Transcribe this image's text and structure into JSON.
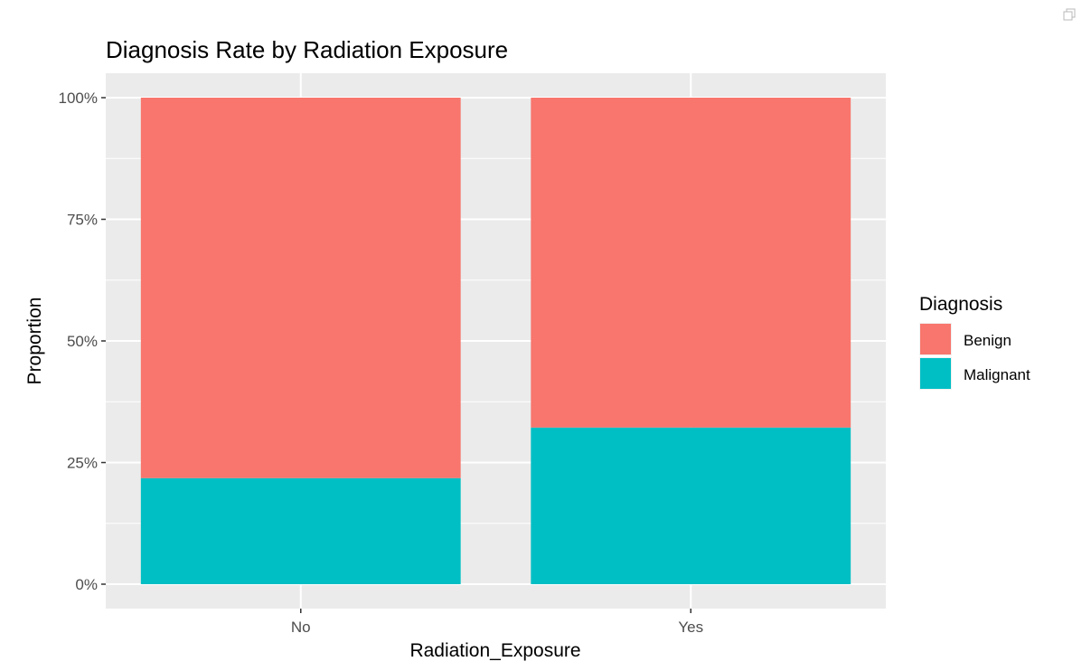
{
  "chart_data": {
    "type": "bar",
    "stacked": "fill",
    "title": "Diagnosis Rate by Radiation Exposure",
    "xlabel": "Radiation_Exposure",
    "ylabel": "Proportion",
    "categories": [
      "No",
      "Yes"
    ],
    "series": [
      {
        "name": "Malignant",
        "values": [
          0.218,
          0.322
        ],
        "color": "#00BFC4"
      },
      {
        "name": "Benign",
        "values": [
          0.782,
          0.678
        ],
        "color": "#F8766D"
      }
    ],
    "ylim": [
      0,
      1
    ],
    "yticks": [
      0,
      0.25,
      0.5,
      0.75,
      1
    ],
    "ytick_labels": [
      "0%",
      "25%",
      "50%",
      "75%",
      "100%"
    ],
    "grid": true,
    "panel_background": "#EBEBEB",
    "legend": {
      "title": "Diagnosis",
      "position": "right",
      "entries": [
        {
          "label": "Benign",
          "color": "#F8766D"
        },
        {
          "label": "Malignant",
          "color": "#00BFC4"
        }
      ]
    }
  },
  "toolbar": {
    "icon": "popout-icon"
  }
}
